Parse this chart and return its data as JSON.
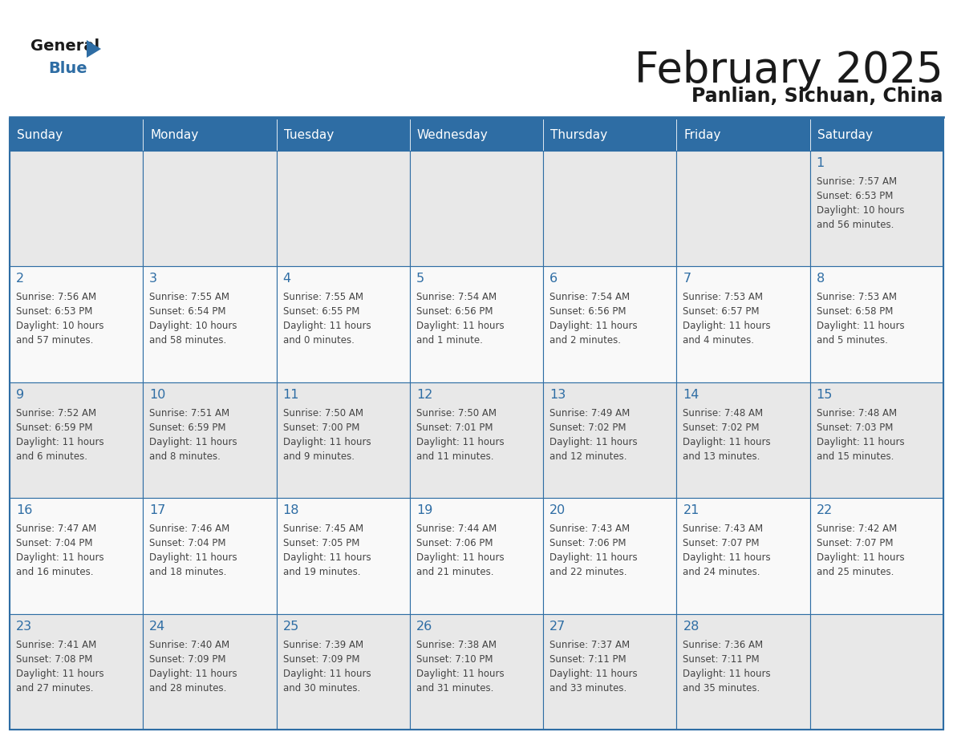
{
  "title": "February 2025",
  "subtitle": "Panlian, Sichuan, China",
  "days_of_week": [
    "Sunday",
    "Monday",
    "Tuesday",
    "Wednesday",
    "Thursday",
    "Friday",
    "Saturday"
  ],
  "header_bg": "#2E6DA4",
  "header_text": "#FFFFFF",
  "row0_bg": "#E8E8E8",
  "row_bg": "#F9F9F9",
  "border_color": "#2E6DA4",
  "day_number_color": "#2E6DA4",
  "cell_text_color": "#444444",
  "title_color": "#1a1a1a",
  "subtitle_color": "#1a1a1a",
  "logo_general_color": "#1a1a1a",
  "logo_blue_color": "#2E6DA4",
  "logo_triangle_color": "#2E6DA4",
  "calendar_data": [
    [
      {
        "day": null,
        "info": ""
      },
      {
        "day": null,
        "info": ""
      },
      {
        "day": null,
        "info": ""
      },
      {
        "day": null,
        "info": ""
      },
      {
        "day": null,
        "info": ""
      },
      {
        "day": null,
        "info": ""
      },
      {
        "day": 1,
        "info": "Sunrise: 7:57 AM\nSunset: 6:53 PM\nDaylight: 10 hours\nand 56 minutes."
      }
    ],
    [
      {
        "day": 2,
        "info": "Sunrise: 7:56 AM\nSunset: 6:53 PM\nDaylight: 10 hours\nand 57 minutes."
      },
      {
        "day": 3,
        "info": "Sunrise: 7:55 AM\nSunset: 6:54 PM\nDaylight: 10 hours\nand 58 minutes."
      },
      {
        "day": 4,
        "info": "Sunrise: 7:55 AM\nSunset: 6:55 PM\nDaylight: 11 hours\nand 0 minutes."
      },
      {
        "day": 5,
        "info": "Sunrise: 7:54 AM\nSunset: 6:56 PM\nDaylight: 11 hours\nand 1 minute."
      },
      {
        "day": 6,
        "info": "Sunrise: 7:54 AM\nSunset: 6:56 PM\nDaylight: 11 hours\nand 2 minutes."
      },
      {
        "day": 7,
        "info": "Sunrise: 7:53 AM\nSunset: 6:57 PM\nDaylight: 11 hours\nand 4 minutes."
      },
      {
        "day": 8,
        "info": "Sunrise: 7:53 AM\nSunset: 6:58 PM\nDaylight: 11 hours\nand 5 minutes."
      }
    ],
    [
      {
        "day": 9,
        "info": "Sunrise: 7:52 AM\nSunset: 6:59 PM\nDaylight: 11 hours\nand 6 minutes."
      },
      {
        "day": 10,
        "info": "Sunrise: 7:51 AM\nSunset: 6:59 PM\nDaylight: 11 hours\nand 8 minutes."
      },
      {
        "day": 11,
        "info": "Sunrise: 7:50 AM\nSunset: 7:00 PM\nDaylight: 11 hours\nand 9 minutes."
      },
      {
        "day": 12,
        "info": "Sunrise: 7:50 AM\nSunset: 7:01 PM\nDaylight: 11 hours\nand 11 minutes."
      },
      {
        "day": 13,
        "info": "Sunrise: 7:49 AM\nSunset: 7:02 PM\nDaylight: 11 hours\nand 12 minutes."
      },
      {
        "day": 14,
        "info": "Sunrise: 7:48 AM\nSunset: 7:02 PM\nDaylight: 11 hours\nand 13 minutes."
      },
      {
        "day": 15,
        "info": "Sunrise: 7:48 AM\nSunset: 7:03 PM\nDaylight: 11 hours\nand 15 minutes."
      }
    ],
    [
      {
        "day": 16,
        "info": "Sunrise: 7:47 AM\nSunset: 7:04 PM\nDaylight: 11 hours\nand 16 minutes."
      },
      {
        "day": 17,
        "info": "Sunrise: 7:46 AM\nSunset: 7:04 PM\nDaylight: 11 hours\nand 18 minutes."
      },
      {
        "day": 18,
        "info": "Sunrise: 7:45 AM\nSunset: 7:05 PM\nDaylight: 11 hours\nand 19 minutes."
      },
      {
        "day": 19,
        "info": "Sunrise: 7:44 AM\nSunset: 7:06 PM\nDaylight: 11 hours\nand 21 minutes."
      },
      {
        "day": 20,
        "info": "Sunrise: 7:43 AM\nSunset: 7:06 PM\nDaylight: 11 hours\nand 22 minutes."
      },
      {
        "day": 21,
        "info": "Sunrise: 7:43 AM\nSunset: 7:07 PM\nDaylight: 11 hours\nand 24 minutes."
      },
      {
        "day": 22,
        "info": "Sunrise: 7:42 AM\nSunset: 7:07 PM\nDaylight: 11 hours\nand 25 minutes."
      }
    ],
    [
      {
        "day": 23,
        "info": "Sunrise: 7:41 AM\nSunset: 7:08 PM\nDaylight: 11 hours\nand 27 minutes."
      },
      {
        "day": 24,
        "info": "Sunrise: 7:40 AM\nSunset: 7:09 PM\nDaylight: 11 hours\nand 28 minutes."
      },
      {
        "day": 25,
        "info": "Sunrise: 7:39 AM\nSunset: 7:09 PM\nDaylight: 11 hours\nand 30 minutes."
      },
      {
        "day": 26,
        "info": "Sunrise: 7:38 AM\nSunset: 7:10 PM\nDaylight: 11 hours\nand 31 minutes."
      },
      {
        "day": 27,
        "info": "Sunrise: 7:37 AM\nSunset: 7:11 PM\nDaylight: 11 hours\nand 33 minutes."
      },
      {
        "day": 28,
        "info": "Sunrise: 7:36 AM\nSunset: 7:11 PM\nDaylight: 11 hours\nand 35 minutes."
      },
      {
        "day": null,
        "info": ""
      }
    ]
  ]
}
